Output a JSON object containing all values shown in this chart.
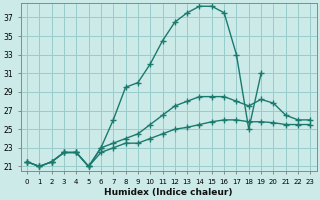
{
  "xlabel": "Humidex (Indice chaleur)",
  "bg_color": "#cceae8",
  "grid_color": "#99cccc",
  "line_color": "#1a7a6e",
  "xlim": [
    -0.5,
    23.5
  ],
  "ylim": [
    20.5,
    38.5
  ],
  "yticks": [
    21,
    23,
    25,
    27,
    29,
    31,
    33,
    35,
    37
  ],
  "xticks": [
    0,
    1,
    2,
    3,
    4,
    5,
    6,
    7,
    8,
    9,
    10,
    11,
    12,
    13,
    14,
    15,
    16,
    17,
    18,
    19,
    20,
    21,
    22,
    23
  ],
  "series": [
    {
      "x": [
        0,
        1,
        2,
        3,
        4,
        5,
        6,
        7,
        8,
        9,
        10,
        11,
        12,
        13,
        14,
        15,
        16,
        17,
        18,
        19,
        20,
        21,
        22,
        23
      ],
      "y": [
        21.5,
        21.0,
        21.5,
        22.5,
        22.5,
        21.0,
        23.0,
        26.0,
        29.5,
        30.0,
        32.0,
        34.5,
        36.5,
        37.5,
        38.2,
        38.2,
        37.5,
        33.0,
        25.0,
        31.0,
        null,
        null,
        null,
        null
      ]
    },
    {
      "x": [
        0,
        1,
        2,
        3,
        4,
        5,
        6,
        7,
        8,
        9,
        10,
        11,
        12,
        13,
        14,
        15,
        16,
        17,
        18,
        19,
        20,
        21,
        22,
        23
      ],
      "y": [
        21.5,
        21.0,
        21.5,
        22.5,
        22.5,
        21.0,
        23.0,
        23.5,
        24.0,
        24.5,
        25.5,
        26.5,
        27.5,
        28.0,
        28.5,
        28.5,
        28.5,
        28.0,
        27.5,
        28.2,
        27.8,
        26.5,
        26.0,
        26.0
      ]
    },
    {
      "x": [
        0,
        1,
        2,
        3,
        4,
        5,
        6,
        7,
        8,
        9,
        10,
        11,
        12,
        13,
        14,
        15,
        16,
        17,
        18,
        19,
        20,
        21,
        22,
        23
      ],
      "y": [
        21.5,
        21.0,
        21.5,
        22.5,
        22.5,
        21.0,
        22.5,
        23.0,
        23.5,
        23.5,
        24.0,
        24.5,
        25.0,
        25.2,
        25.5,
        25.8,
        26.0,
        26.0,
        25.8,
        25.8,
        25.7,
        25.5,
        25.5,
        25.5
      ]
    }
  ]
}
